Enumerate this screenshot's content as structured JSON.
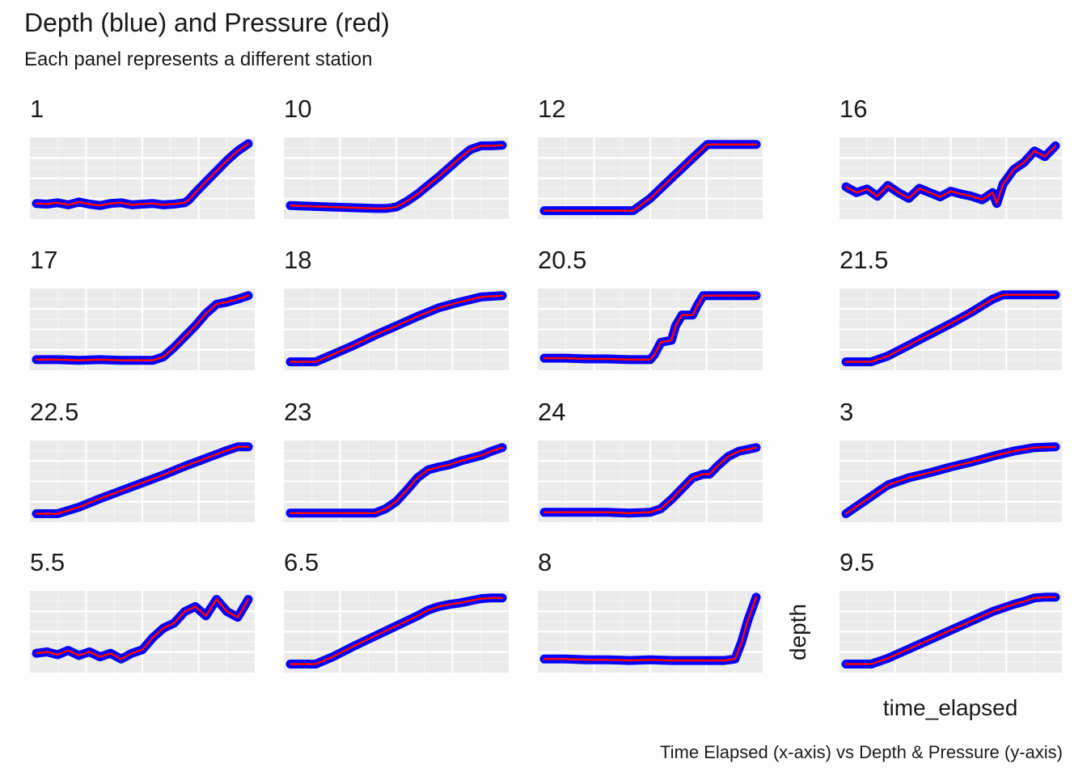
{
  "chart_data": {
    "type": "line",
    "title": "Depth (blue) and Pressure (red)",
    "subtitle": "Each panel represents a different station",
    "caption": "Time Elapsed (x-axis) vs Depth & Pressure (y-axis)",
    "xlabel": "time_elapsed",
    "ylabel": "depth",
    "facet_by": "station",
    "grid": true,
    "axis_tick_labels_shown": false,
    "series": [
      {
        "name": "Depth",
        "color": "#0000ff"
      },
      {
        "name": "Pressure",
        "color": "#ff0000"
      }
    ],
    "panels": [
      {
        "station": "1",
        "x": [
          0,
          0.05,
          0.1,
          0.15,
          0.2,
          0.25,
          0.3,
          0.35,
          0.4,
          0.45,
          0.5,
          0.55,
          0.6,
          0.65,
          0.7,
          0.72,
          0.75,
          0.8,
          0.85,
          0.9,
          0.95,
          1.0
        ],
        "y": [
          0.15,
          0.14,
          0.16,
          0.13,
          0.17,
          0.14,
          0.12,
          0.15,
          0.16,
          0.13,
          0.14,
          0.15,
          0.13,
          0.14,
          0.16,
          0.2,
          0.3,
          0.45,
          0.6,
          0.75,
          0.88,
          0.98
        ]
      },
      {
        "station": "10",
        "x": [
          0,
          0.1,
          0.2,
          0.3,
          0.4,
          0.45,
          0.5,
          0.55,
          0.6,
          0.65,
          0.7,
          0.75,
          0.8,
          0.85,
          0.9,
          0.95,
          1.0
        ],
        "y": [
          0.12,
          0.11,
          0.1,
          0.09,
          0.08,
          0.08,
          0.1,
          0.18,
          0.28,
          0.4,
          0.52,
          0.65,
          0.78,
          0.9,
          0.95,
          0.95,
          0.96
        ]
      },
      {
        "station": "12",
        "x": [
          0,
          0.15,
          0.3,
          0.42,
          0.5,
          0.6,
          0.7,
          0.77,
          0.85,
          0.92,
          1.0
        ],
        "y": [
          0.05,
          0.05,
          0.05,
          0.05,
          0.22,
          0.5,
          0.78,
          0.97,
          0.97,
          0.97,
          0.97
        ]
      },
      {
        "station": "16",
        "x": [
          0,
          0.05,
          0.1,
          0.15,
          0.2,
          0.25,
          0.3,
          0.35,
          0.4,
          0.45,
          0.5,
          0.55,
          0.6,
          0.65,
          0.7,
          0.72,
          0.75,
          0.8,
          0.85,
          0.9,
          0.95,
          1.0
        ],
        "y": [
          0.38,
          0.3,
          0.35,
          0.25,
          0.4,
          0.3,
          0.22,
          0.36,
          0.3,
          0.24,
          0.32,
          0.28,
          0.25,
          0.2,
          0.3,
          0.15,
          0.42,
          0.62,
          0.72,
          0.88,
          0.8,
          0.95
        ]
      },
      {
        "station": "17",
        "x": [
          0,
          0.1,
          0.2,
          0.3,
          0.4,
          0.5,
          0.55,
          0.6,
          0.65,
          0.7,
          0.75,
          0.8,
          0.85,
          0.9,
          0.95,
          1.0
        ],
        "y": [
          0.08,
          0.08,
          0.07,
          0.08,
          0.07,
          0.07,
          0.07,
          0.12,
          0.25,
          0.4,
          0.55,
          0.72,
          0.85,
          0.88,
          0.92,
          0.97
        ]
      },
      {
        "station": "18",
        "x": [
          0,
          0.12,
          0.2,
          0.3,
          0.4,
          0.5,
          0.6,
          0.7,
          0.8,
          0.9,
          1.0
        ],
        "y": [
          0.05,
          0.05,
          0.15,
          0.28,
          0.42,
          0.55,
          0.68,
          0.8,
          0.88,
          0.95,
          0.97
        ]
      },
      {
        "station": "20.5",
        "x": [
          0,
          0.1,
          0.2,
          0.3,
          0.4,
          0.5,
          0.52,
          0.55,
          0.6,
          0.62,
          0.65,
          0.7,
          0.72,
          0.75,
          0.8,
          0.9,
          1.0
        ],
        "y": [
          0.1,
          0.1,
          0.09,
          0.09,
          0.08,
          0.08,
          0.15,
          0.32,
          0.35,
          0.55,
          0.7,
          0.7,
          0.82,
          0.97,
          0.97,
          0.97,
          0.97
        ]
      },
      {
        "station": "21.5",
        "x": [
          0,
          0.12,
          0.2,
          0.3,
          0.4,
          0.5,
          0.6,
          0.7,
          0.75,
          0.85,
          1.0
        ],
        "y": [
          0.05,
          0.05,
          0.13,
          0.28,
          0.43,
          0.58,
          0.74,
          0.92,
          0.98,
          0.98,
          0.98
        ]
      },
      {
        "station": "22.5",
        "x": [
          0,
          0.1,
          0.2,
          0.3,
          0.4,
          0.5,
          0.6,
          0.7,
          0.8,
          0.9,
          0.95,
          1.0
        ],
        "y": [
          0.05,
          0.05,
          0.14,
          0.26,
          0.37,
          0.48,
          0.59,
          0.71,
          0.82,
          0.93,
          0.98,
          0.98
        ]
      },
      {
        "station": "23",
        "x": [
          0,
          0.1,
          0.2,
          0.3,
          0.4,
          0.45,
          0.5,
          0.55,
          0.6,
          0.65,
          0.7,
          0.75,
          0.8,
          0.85,
          0.9,
          0.95,
          1.0
        ],
        "y": [
          0.06,
          0.06,
          0.06,
          0.06,
          0.06,
          0.12,
          0.22,
          0.38,
          0.55,
          0.66,
          0.7,
          0.73,
          0.78,
          0.82,
          0.86,
          0.92,
          0.97
        ]
      },
      {
        "station": "24",
        "x": [
          0,
          0.1,
          0.2,
          0.3,
          0.4,
          0.5,
          0.55,
          0.6,
          0.65,
          0.7,
          0.75,
          0.78,
          0.82,
          0.87,
          0.92,
          1.0
        ],
        "y": [
          0.07,
          0.07,
          0.07,
          0.07,
          0.06,
          0.07,
          0.12,
          0.25,
          0.4,
          0.55,
          0.6,
          0.6,
          0.72,
          0.85,
          0.92,
          0.97
        ]
      },
      {
        "station": "3",
        "x": [
          0,
          0.05,
          0.1,
          0.15,
          0.2,
          0.3,
          0.4,
          0.5,
          0.6,
          0.7,
          0.8,
          0.9,
          1.0
        ],
        "y": [
          0.05,
          0.15,
          0.25,
          0.35,
          0.45,
          0.55,
          0.62,
          0.7,
          0.77,
          0.85,
          0.92,
          0.97,
          0.98
        ]
      },
      {
        "station": "5.5",
        "x": [
          0,
          0.05,
          0.1,
          0.15,
          0.2,
          0.25,
          0.3,
          0.35,
          0.4,
          0.45,
          0.5,
          0.55,
          0.6,
          0.65,
          0.7,
          0.75,
          0.8,
          0.85,
          0.9,
          0.95,
          1.0
        ],
        "y": [
          0.2,
          0.22,
          0.18,
          0.24,
          0.17,
          0.22,
          0.15,
          0.2,
          0.12,
          0.2,
          0.25,
          0.42,
          0.55,
          0.62,
          0.78,
          0.85,
          0.72,
          0.95,
          0.78,
          0.7,
          0.95
        ]
      },
      {
        "station": "6.5",
        "x": [
          0,
          0.12,
          0.2,
          0.3,
          0.4,
          0.5,
          0.6,
          0.65,
          0.7,
          0.75,
          0.8,
          0.85,
          0.9,
          0.95,
          1.0
        ],
        "y": [
          0.05,
          0.05,
          0.15,
          0.3,
          0.44,
          0.58,
          0.72,
          0.8,
          0.85,
          0.88,
          0.9,
          0.93,
          0.96,
          0.97,
          0.97
        ]
      },
      {
        "station": "8",
        "x": [
          0,
          0.1,
          0.2,
          0.3,
          0.4,
          0.5,
          0.6,
          0.7,
          0.8,
          0.85,
          0.9,
          0.93,
          0.96,
          1.0
        ],
        "y": [
          0.12,
          0.12,
          0.11,
          0.11,
          0.1,
          0.11,
          0.1,
          0.1,
          0.1,
          0.1,
          0.12,
          0.35,
          0.65,
          0.98
        ]
      },
      {
        "station": "9.5",
        "x": [
          0,
          0.12,
          0.2,
          0.3,
          0.4,
          0.5,
          0.6,
          0.7,
          0.8,
          0.85,
          0.9,
          0.95,
          1.0
        ],
        "y": [
          0.05,
          0.05,
          0.13,
          0.26,
          0.39,
          0.52,
          0.65,
          0.78,
          0.88,
          0.92,
          0.97,
          0.98,
          0.98
        ]
      }
    ]
  }
}
